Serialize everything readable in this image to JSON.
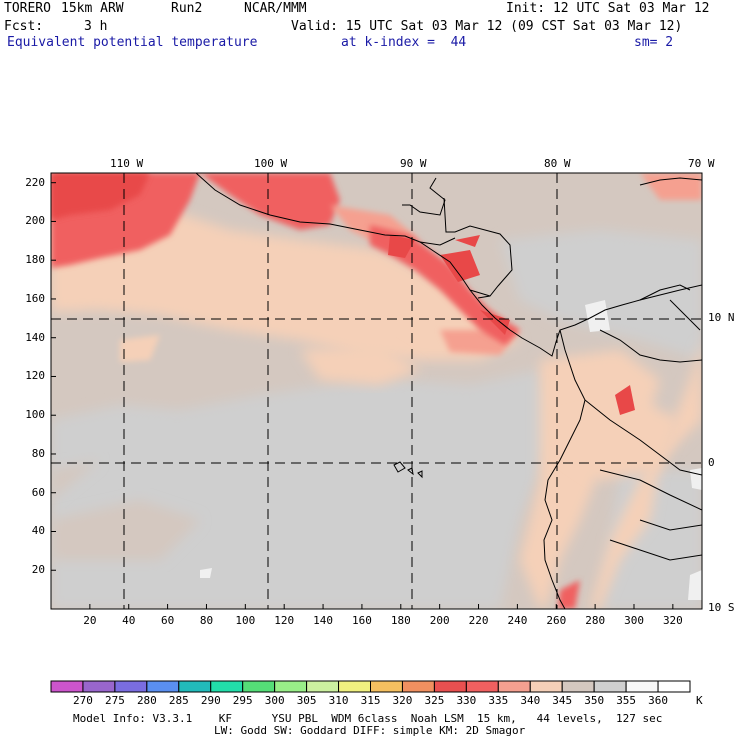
{
  "header": {
    "model": "TORERO",
    "resolution": "15km ARW",
    "run": "Run2",
    "org": "NCAR/MMM",
    "init": "Init: 12 UTC Sat 03 Mar 12",
    "fcst_label": "Fcst:",
    "fcst_value": "3 h",
    "valid": "Valid: 15 UTC Sat 03 Mar 12 (09 CST Sat 03 Mar 12)",
    "field": "Equivalent potential temperature",
    "level": "at k-index =  44",
    "smoothing": "sm= 2"
  },
  "map": {
    "lon_labels": [
      "110 W",
      "100 W",
      "90 W",
      "80 W",
      "70 W"
    ],
    "lat_labels": [
      "10 N",
      "0",
      "10 S"
    ],
    "x_ticks": [
      "20",
      "40",
      "60",
      "80",
      "100",
      "120",
      "140",
      "160",
      "180",
      "200",
      "220",
      "240",
      "260",
      "280",
      "300",
      "320"
    ],
    "y_ticks": [
      "20",
      "40",
      "60",
      "80",
      "100",
      "120",
      "140",
      "160",
      "180",
      "200",
      "220"
    ],
    "grid_extent_x": [
      0,
      335
    ],
    "grid_extent_y": [
      0,
      225
    ]
  },
  "colorbar": {
    "levels": [
      "270",
      "275",
      "280",
      "285",
      "290",
      "295",
      "300",
      "305",
      "310",
      "315",
      "320",
      "325",
      "330",
      "335",
      "340",
      "345",
      "350",
      "355",
      "360"
    ],
    "unit": "K",
    "colors": [
      "#cc55cc",
      "#9966cc",
      "#7a6de0",
      "#5a8ff0",
      "#22bbbb",
      "#22ddaa",
      "#55dd77",
      "#99ee88",
      "#ccf0a0",
      "#f0f080",
      "#f5c060",
      "#f09060",
      "#e85050",
      "#f06060",
      "#f5a090",
      "#f5d0b8",
      "#d4c8c0",
      "#d0d0d0",
      "#f8f8f8",
      "#ffffff"
    ]
  },
  "footer": {
    "line1": "Model Info: V3.3.1    KF      YSU PBL  WDM 6class  Noah LSM  15 km,   44 levels,  127 sec",
    "line2": "LW: Godd SW: Goddard DIFF: simple KM: 2D Smagor"
  }
}
